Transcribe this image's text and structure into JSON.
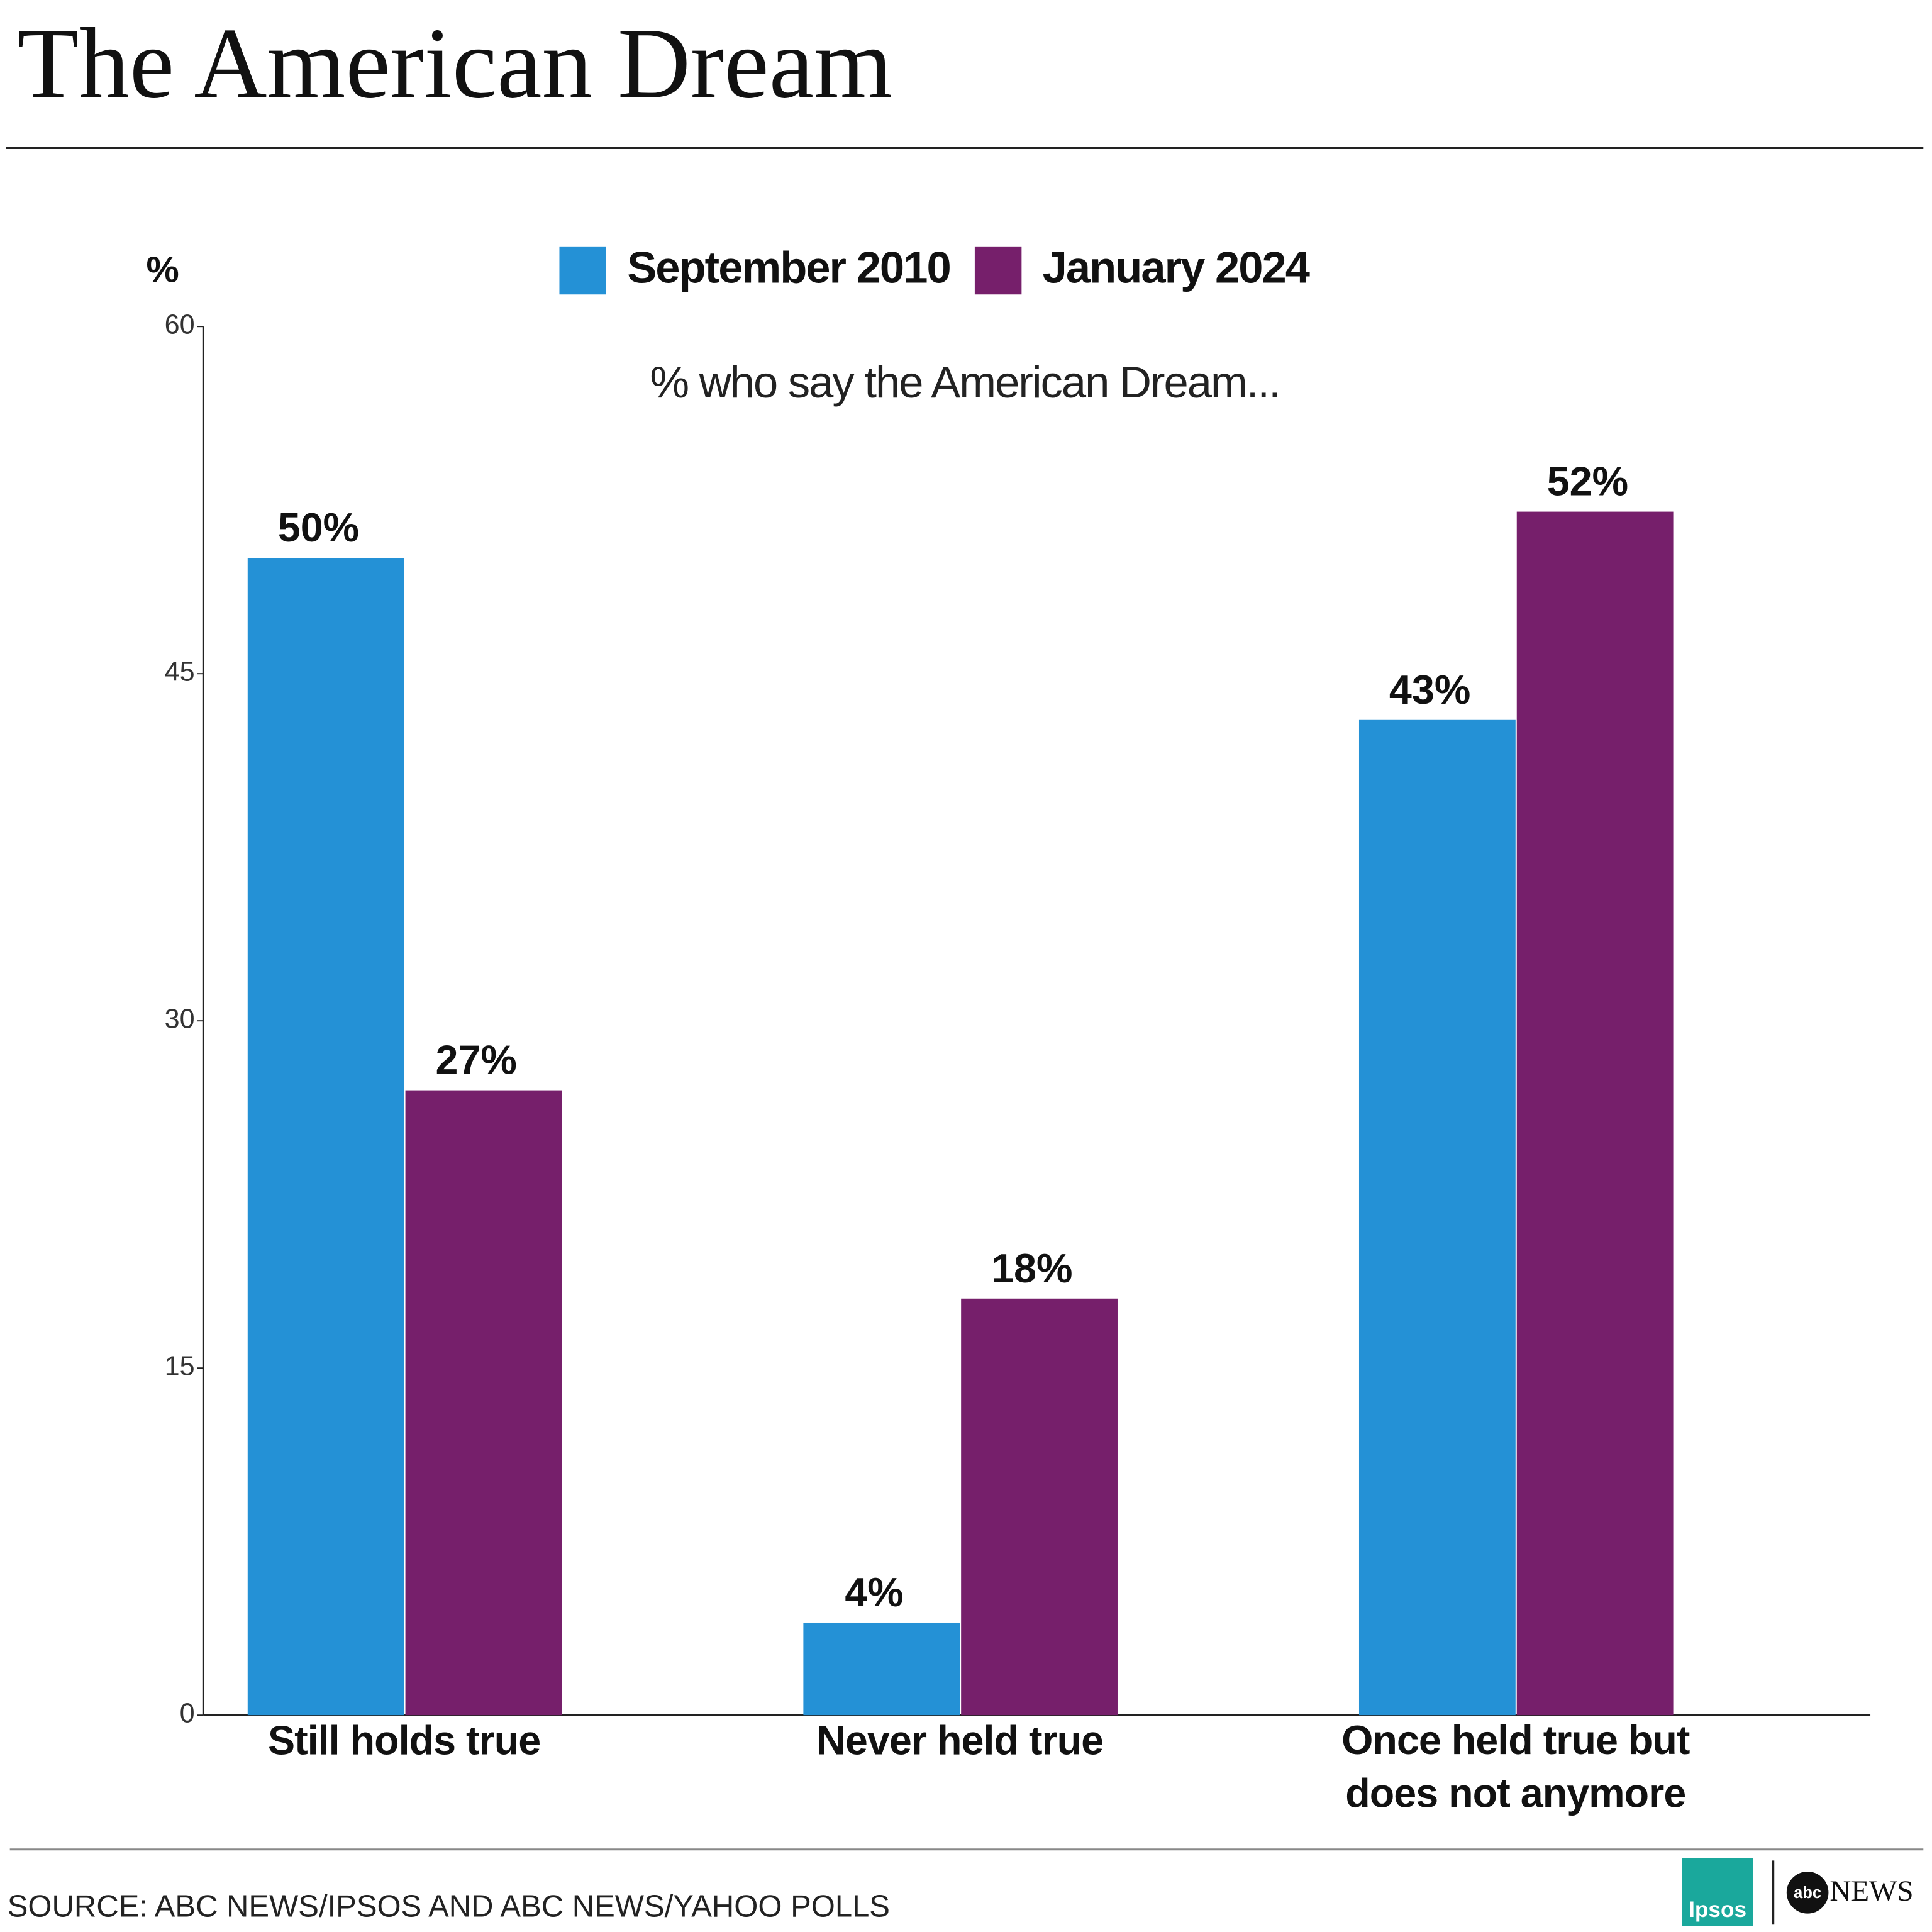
{
  "chart_data": {
    "type": "bar",
    "title": "The American Dream",
    "subtitle": "% who say the American Dream...",
    "y_label": "%",
    "categories": [
      "Still holds true",
      "Never held true",
      "Once held true but does not anymore"
    ],
    "series": [
      {
        "name": "September 2010",
        "color": "#2491d6",
        "values": [
          50,
          4,
          43
        ],
        "value_labels": [
          "50%",
          "4%",
          "43%"
        ]
      },
      {
        "name": "January 2024",
        "color": "#761f6b",
        "values": [
          27,
          18,
          52
        ],
        "value_labels": [
          "27%",
          "18%",
          "52%"
        ]
      }
    ],
    "ylim": [
      0,
      60
    ],
    "yticks": [
      0,
      15,
      30,
      45,
      60
    ],
    "grid": false,
    "legend": "top",
    "source": "SOURCE: ABC NEWS/IPSOS AND ABC NEWS/YAHOO POLLS",
    "logos": [
      "Ipsos",
      "abc",
      "NEWS"
    ]
  }
}
